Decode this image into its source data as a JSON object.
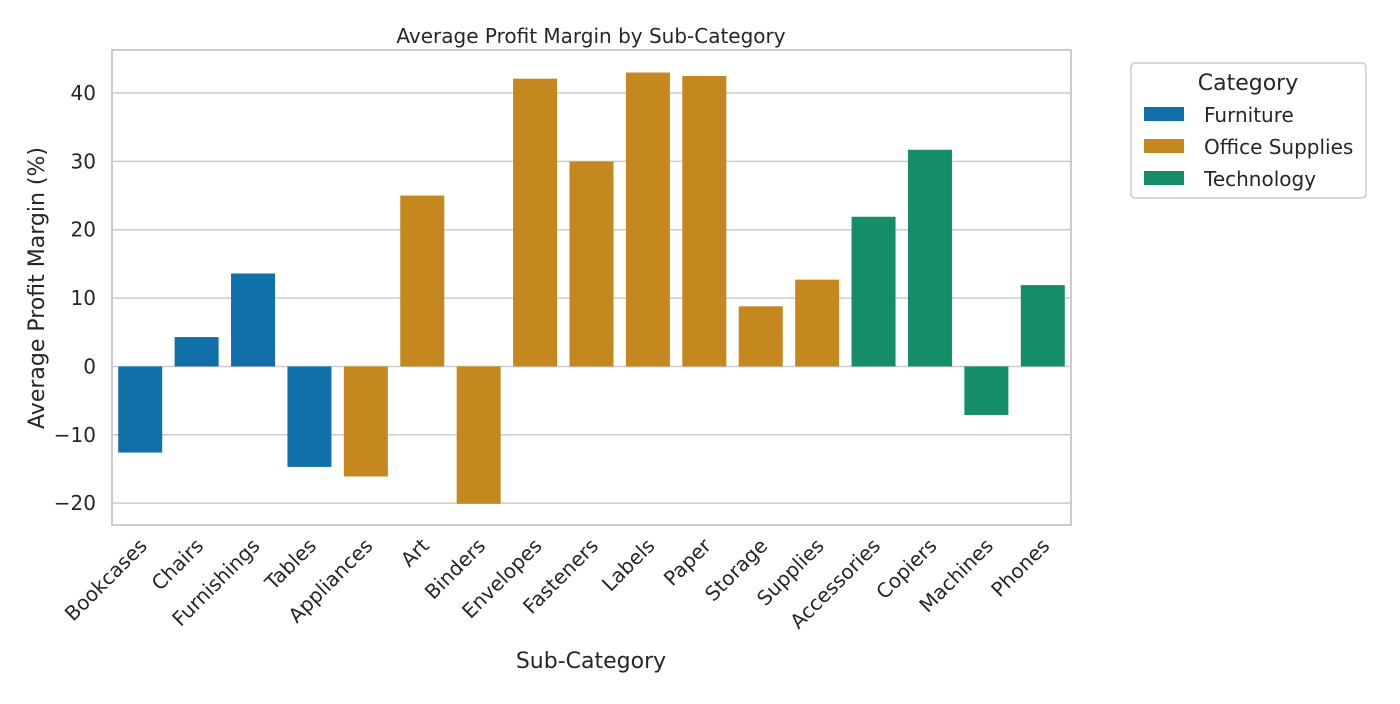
{
  "chart_data": {
    "type": "bar",
    "title": "Average Profit Margin by Sub-Category",
    "xlabel": "Sub-Category",
    "ylabel": "Average Profit Margin (%)",
    "ylim": [
      -23.2,
      46.3
    ],
    "yticks": [
      -20,
      -10,
      0,
      10,
      20,
      30,
      40
    ],
    "ytick_labels": [
      "−20",
      "−10",
      "0",
      "10",
      "20",
      "30",
      "40"
    ],
    "grid": true,
    "legend": {
      "title": "Category",
      "placement": "outside-top-right",
      "entries": [
        {
          "name": "Furniture",
          "color": "#1170aa"
        },
        {
          "name": "Office Supplies",
          "color": "#c4881f"
        },
        {
          "name": "Technology",
          "color": "#168d6a"
        }
      ]
    },
    "categories": [
      "Bookcases",
      "Chairs",
      "Furnishings",
      "Tables",
      "Appliances",
      "Art",
      "Binders",
      "Envelopes",
      "Fasteners",
      "Labels",
      "Paper",
      "Storage",
      "Supplies",
      "Accessories",
      "Copiers",
      "Machines",
      "Phones"
    ],
    "bar_category": [
      "Furniture",
      "Furniture",
      "Furniture",
      "Furniture",
      "Office Supplies",
      "Office Supplies",
      "Office Supplies",
      "Office Supplies",
      "Office Supplies",
      "Office Supplies",
      "Office Supplies",
      "Office Supplies",
      "Office Supplies",
      "Technology",
      "Technology",
      "Technology",
      "Technology"
    ],
    "values": [
      -12.6,
      4.3,
      13.6,
      -14.7,
      -16.1,
      25.0,
      -20.1,
      42.1,
      30.0,
      43.0,
      42.5,
      8.8,
      12.7,
      21.9,
      31.7,
      -7.1,
      11.9
    ]
  }
}
